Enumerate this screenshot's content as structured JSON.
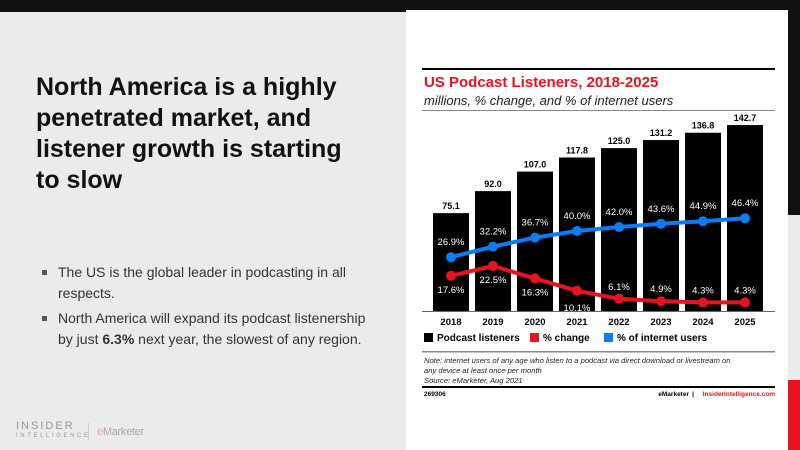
{
  "slide": {
    "heading": "North America is a highly penetrated market, and listener growth is starting to slow",
    "bullets": [
      {
        "text": "The US is the global leader in podcasting in all respects."
      },
      {
        "pre": "North America will expand its podcast listenership by just ",
        "bold": "6.3%",
        "post": " next year, the slowest of any region."
      }
    ],
    "logo_insider": "INSIDER",
    "logo_intelligence": "INTELLIGENCE",
    "logo_emarketer_e": "e",
    "logo_emarketer_rest": "Marketer"
  },
  "colors": {
    "bars": "#000000",
    "change": "#e8131e",
    "internet": "#0a7cf5",
    "title": "#e8131e"
  },
  "chart_data": {
    "type": "bar",
    "title": "US Podcast Listeners, 2018-2025",
    "subtitle": "millions, % change, and % of internet users",
    "categories": [
      "2018",
      "2019",
      "2020",
      "2021",
      "2022",
      "2023",
      "2024",
      "2025"
    ],
    "series": [
      {
        "name": "Podcast listeners",
        "type": "bar",
        "values": [
          75.1,
          92.0,
          107.0,
          117.8,
          125.0,
          131.2,
          136.8,
          142.7
        ],
        "labels": [
          "75.1",
          "92.0",
          "107.0",
          "117.8",
          "125.0",
          "131.2",
          "136.8",
          "142.7"
        ]
      },
      {
        "name": "% change",
        "type": "line",
        "values": [
          17.6,
          22.5,
          16.3,
          10.1,
          6.1,
          4.9,
          4.3,
          4.3
        ],
        "labels": [
          "17.6%",
          "22.5%",
          "16.3%",
          "10.1%",
          "6.1%",
          "4.9%",
          "4.3%",
          "4.3%"
        ]
      },
      {
        "name": "% of internet users",
        "type": "line",
        "values": [
          26.9,
          32.2,
          36.7,
          40.0,
          42.0,
          43.6,
          44.9,
          46.4
        ],
        "labels": [
          "26.9%",
          "32.2%",
          "36.7%",
          "40.0%",
          "42.0%",
          "43.6%",
          "44.9%",
          "46.4%"
        ]
      }
    ],
    "legend": "bottom",
    "note": "Note: internet users of any age who listen to a podcast via direct download or livestream on",
    "note2": "any device at least once per month",
    "source": "Source: eMarketer, Aug 2021",
    "chart_id": "269306",
    "brand1": "eMarketer",
    "brand_sep": "|",
    "brand2": "InsiderIntelligence.com"
  }
}
